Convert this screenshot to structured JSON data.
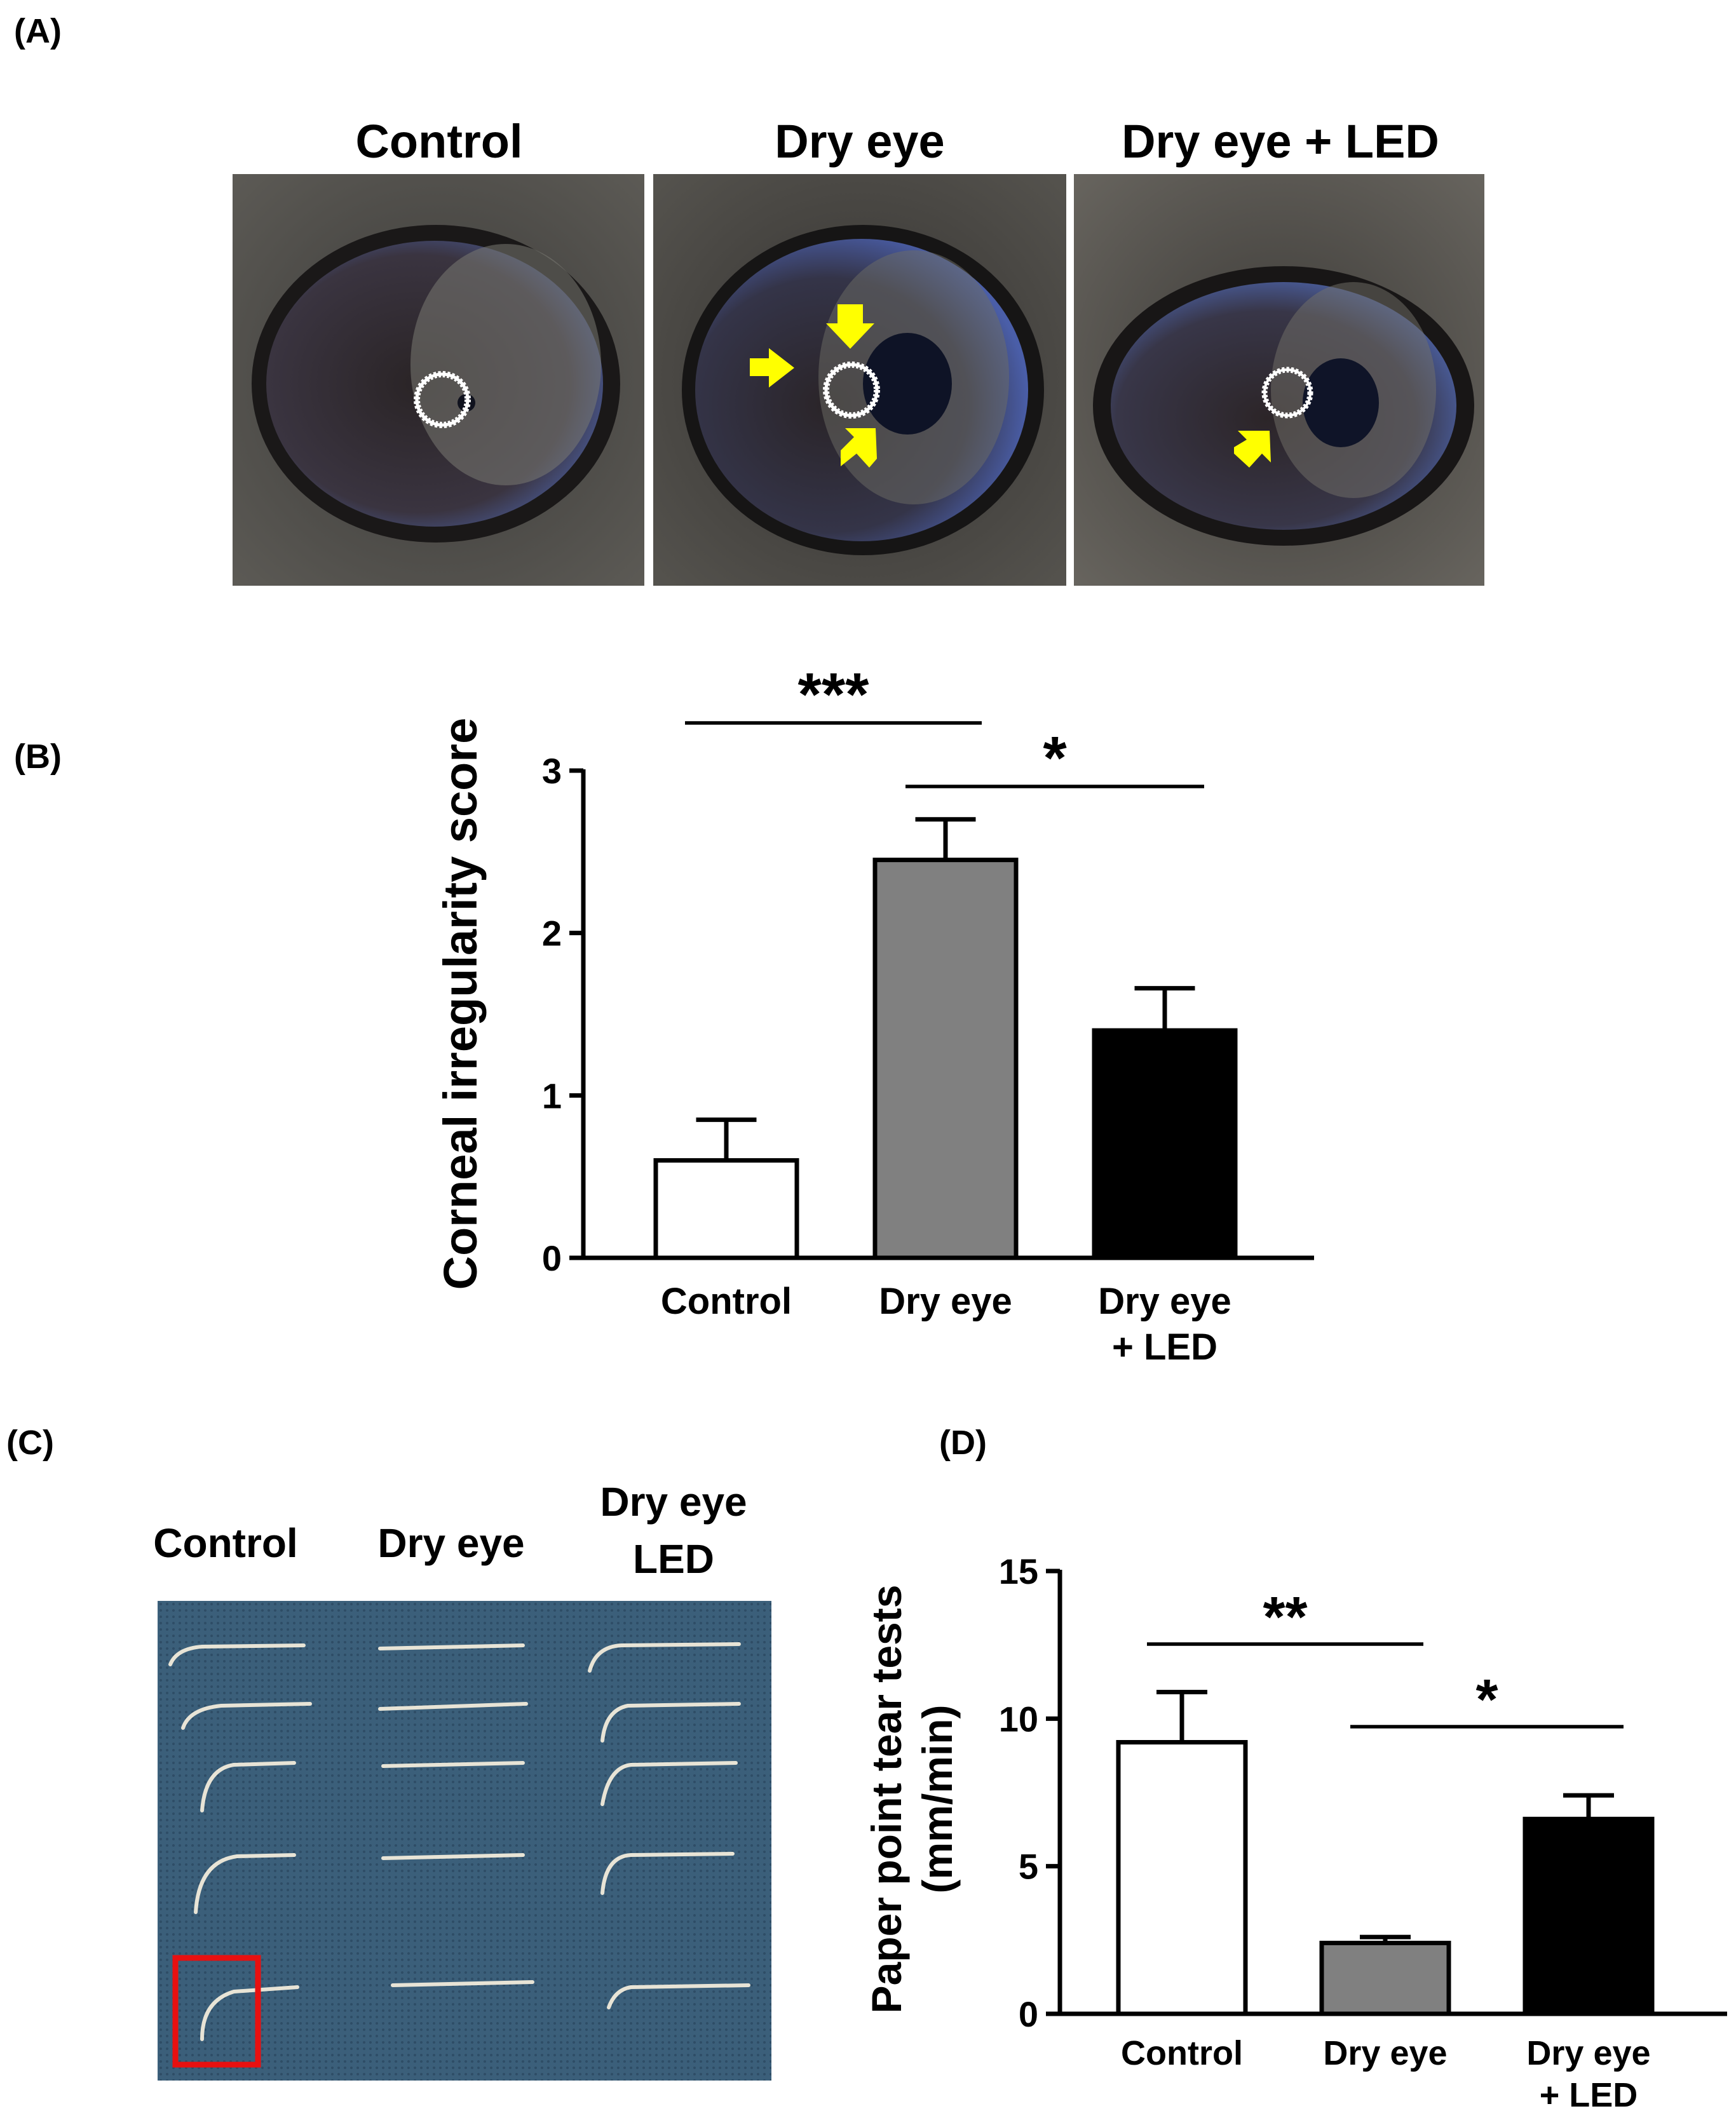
{
  "panels": {
    "a": "(A)",
    "b": "(B)",
    "c": "(C)",
    "d": "(D)"
  },
  "panel_a": {
    "titles": [
      "Control",
      "Dry eye",
      "Dry eye + LED"
    ],
    "arrow_color": "#ffff00"
  },
  "panel_c": {
    "columns": [
      "Control",
      "Dry eye",
      "Dry eye\nLED"
    ],
    "highlight_color": "#e81010"
  },
  "colors": {
    "control": "#ffffff",
    "dry_eye": "#808080",
    "dry_eye_led": "#000000"
  },
  "chart_data": [
    {
      "type": "bar",
      "panel": "(B)",
      "categories": [
        "Control",
        "Dry eye",
        "Dry eye\n+ LED"
      ],
      "values": [
        0.6,
        2.45,
        1.4
      ],
      "errors": [
        0.25,
        0.25,
        0.26
      ],
      "ylabel": "Corneal irregularity score",
      "ylim": [
        0,
        3
      ],
      "yticks": [
        0,
        1,
        2,
        3
      ],
      "significance": [
        {
          "from": 0,
          "to": 1,
          "label": "***"
        },
        {
          "from": 1,
          "to": 2,
          "label": "*"
        }
      ]
    },
    {
      "type": "bar",
      "panel": "(D)",
      "categories": [
        "Control",
        "Dry eye",
        "Dry eye\n+ LED"
      ],
      "values": [
        9.2,
        2.4,
        6.6
      ],
      "errors": [
        1.7,
        0.2,
        0.8
      ],
      "ylabel": "Paper point tear tests\n(mm/min)",
      "ylim": [
        0,
        15
      ],
      "yticks": [
        0,
        5,
        10,
        15
      ],
      "significance": [
        {
          "from": 0,
          "to": 1,
          "label": "**"
        },
        {
          "from": 1,
          "to": 2,
          "label": "*"
        }
      ]
    }
  ]
}
